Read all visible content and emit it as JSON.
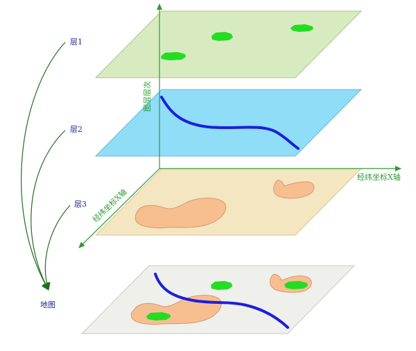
{
  "labels": {
    "layer1": "层1",
    "layer2": "层2",
    "layer3": "层3",
    "map": "地图",
    "axis_vertical": "图层层次",
    "axis_x": "经纬坐标X轴",
    "axis_diagonal": "经纬坐标X轴"
  },
  "colors": {
    "layer1_fill": "#d8ebc0",
    "layer2_fill": "#8fddf7",
    "layer3_fill": "#f3e6c1",
    "map_fill": "#efefec",
    "polygon_fill": "#f7be90",
    "point_fill": "#22dd22",
    "line_stroke": "#1b1fdc",
    "axis_green": "#2e9b2e",
    "arrow_green": "#1e6e1e",
    "label_blue": "#1f2a8c"
  }
}
